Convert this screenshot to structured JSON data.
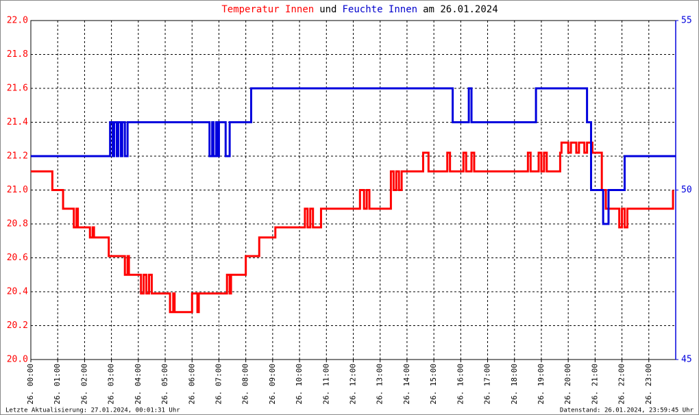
{
  "chart_data": {
    "type": "step-line",
    "title": [
      {
        "text": "Temperatur Innen",
        "color": "#ff0000"
      },
      {
        "text": "und",
        "color": "#000000"
      },
      {
        "text": "Feuchte Innen",
        "color": "#0000cc"
      },
      {
        "text": "am 26.01.2024",
        "color": "#000000"
      }
    ],
    "footer_left": "Letzte Aktualisierung: 27.01.2024, 00:01:31 Uhr",
    "footer_right": "Datenstand: 26.01.2024, 23:59:45 Uhr",
    "grid": true,
    "xlim": [
      0,
      24
    ],
    "xticks": [
      {
        "value": 0,
        "label": "26. 00:00"
      },
      {
        "value": 1,
        "label": "26. 01:00"
      },
      {
        "value": 2,
        "label": "26. 02:00"
      },
      {
        "value": 3,
        "label": "26. 03:00"
      },
      {
        "value": 4,
        "label": "26. 04:00"
      },
      {
        "value": 5,
        "label": "26. 05:00"
      },
      {
        "value": 6,
        "label": "26. 06:00"
      },
      {
        "value": 7,
        "label": "26. 07:00"
      },
      {
        "value": 8,
        "label": "26. 08:00"
      },
      {
        "value": 9,
        "label": "26. 09:00"
      },
      {
        "value": 10,
        "label": "26. 10:00"
      },
      {
        "value": 11,
        "label": "26. 11:00"
      },
      {
        "value": 12,
        "label": "26. 12:00"
      },
      {
        "value": 13,
        "label": "26. 13:00"
      },
      {
        "value": 14,
        "label": "26. 14:00"
      },
      {
        "value": 15,
        "label": "26. 15:00"
      },
      {
        "value": 16,
        "label": "26. 16:00"
      },
      {
        "value": 17,
        "label": "26. 17:00"
      },
      {
        "value": 18,
        "label": "26. 18:00"
      },
      {
        "value": 19,
        "label": "26. 19:00"
      },
      {
        "value": 20,
        "label": "26. 20:00"
      },
      {
        "value": 21,
        "label": "26. 21:00"
      },
      {
        "value": 22,
        "label": "26. 22:00"
      },
      {
        "value": 23,
        "label": "26. 23:00"
      }
    ],
    "ylim": [
      20,
      22
    ],
    "yticks": [
      {
        "value": 20,
        "label": "20.0"
      },
      20.2,
      20.4,
      20.6,
      20.8,
      {
        "value": 21,
        "label": "21.0"
      },
      21.2,
      21.4,
      21.6,
      21.8,
      {
        "value": 22,
        "label": "22.0"
      }
    ],
    "y2lim": [
      45,
      55
    ],
    "y2ticks": [
      45,
      50,
      55
    ],
    "series": [
      {
        "name": "Temperatur Innen",
        "color": "#ff0000",
        "x": [
          0,
          0.8,
          1.2,
          1.6,
          1.7,
          1.75,
          2.2,
          2.3,
          2.35,
          2.9,
          3.5,
          3.6,
          3.65,
          4.1,
          4.2,
          4.3,
          4.4,
          4.5,
          5.18,
          5.3,
          5.35,
          5.45,
          6.0,
          6.2,
          6.25,
          7.3,
          7.4,
          7.45,
          8.0,
          8.5,
          9.1,
          10.2,
          10.3,
          10.4,
          10.5,
          10.8,
          12.25,
          12.4,
          12.5,
          12.6,
          13.4,
          13.5,
          13.6,
          13.7,
          13.8,
          14.0,
          14.6,
          14.8,
          15.5,
          15.6,
          16.1,
          16.2,
          16.4,
          16.5,
          18.5,
          18.6,
          18.9,
          19.0,
          19.1,
          19.2,
          19.7,
          19.75,
          20.0,
          20.1,
          20.3,
          20.4,
          20.6,
          20.7,
          20.9,
          21.25,
          21.4,
          21.9,
          22.0,
          22.1,
          22.2,
          23.9
        ],
        "values": [
          21.11,
          21.0,
          20.89,
          20.78,
          20.89,
          20.78,
          20.72,
          20.78,
          20.72,
          20.61,
          20.5,
          20.61,
          20.5,
          20.39,
          20.5,
          20.39,
          20.5,
          20.39,
          20.28,
          20.39,
          20.28,
          20.28,
          20.39,
          20.28,
          20.39,
          20.5,
          20.39,
          20.5,
          20.61,
          20.72,
          20.78,
          20.89,
          20.78,
          20.89,
          20.78,
          20.89,
          21.0,
          20.89,
          21.0,
          20.89,
          21.11,
          21.0,
          21.11,
          21.0,
          21.11,
          21.11,
          21.22,
          21.11,
          21.22,
          21.11,
          21.22,
          21.11,
          21.22,
          21.11,
          21.22,
          21.11,
          21.22,
          21.11,
          21.22,
          21.11,
          21.22,
          21.28,
          21.22,
          21.28,
          21.22,
          21.28,
          21.22,
          21.28,
          21.22,
          21.0,
          20.89,
          20.78,
          20.89,
          20.78,
          20.89,
          21.0
        ]
      },
      {
        "name": "Feuchte Innen",
        "color": "#0000dd",
        "axis": "y2",
        "x": [
          0,
          2.95,
          3.05,
          3.1,
          3.2,
          3.25,
          3.35,
          3.4,
          3.5,
          3.6,
          6.65,
          6.75,
          6.8,
          6.9,
          6.95,
          7.0,
          7.25,
          7.4,
          8.2,
          15.7,
          16.3,
          16.4,
          18.8,
          20.7,
          20.85,
          21.3,
          21.5,
          22.1,
          24
        ],
        "values": [
          51,
          52,
          51,
          52,
          51,
          52,
          51,
          52,
          51,
          52,
          51,
          52,
          51,
          52,
          51,
          52,
          51,
          52,
          53,
          52,
          53,
          52,
          53,
          52,
          50,
          49,
          50,
          51,
          51
        ]
      }
    ]
  }
}
